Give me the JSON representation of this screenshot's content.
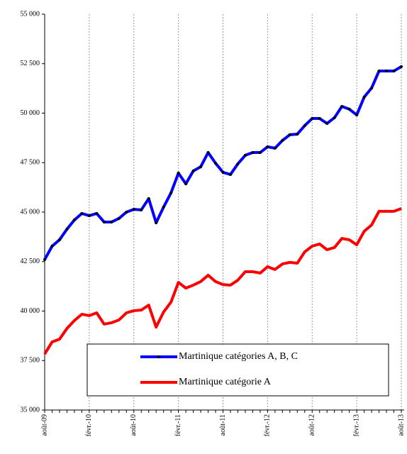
{
  "chart_data": {
    "type": "line",
    "categories": [
      "août-09",
      null,
      null,
      null,
      null,
      null,
      "févr.-10",
      null,
      null,
      null,
      null,
      null,
      "août-10",
      null,
      null,
      null,
      null,
      null,
      "févr.-11",
      null,
      null,
      null,
      null,
      null,
      "août-11",
      null,
      null,
      null,
      null,
      null,
      "févr.-12",
      null,
      null,
      null,
      null,
      null,
      "août-12",
      null,
      null,
      null,
      null,
      null,
      "févr.-13",
      null,
      null,
      null,
      null,
      null,
      "août-13"
    ],
    "series": [
      {
        "name": "Martinique catégories A, B, C",
        "color": "#0000ff",
        "markers": true,
        "values": [
          42600,
          43280,
          43600,
          44140,
          44600,
          44930,
          44820,
          44930,
          44500,
          44500,
          44680,
          45000,
          45140,
          45110,
          45680,
          44460,
          45250,
          45970,
          46970,
          46430,
          47080,
          47290,
          48010,
          47470,
          47010,
          46900,
          47440,
          47870,
          48010,
          48010,
          48300,
          48230,
          48620,
          48910,
          48940,
          49370,
          49730,
          49730,
          49480,
          49770,
          50340,
          50200,
          49910,
          50810,
          51270,
          52130,
          52130,
          52130,
          52350
        ]
      },
      {
        "name": "Martinique catégorie A",
        "color": "#ff0000",
        "markers": false,
        "values": [
          37830,
          38440,
          38580,
          39120,
          39520,
          39840,
          39770,
          39910,
          39340,
          39410,
          39550,
          39910,
          40020,
          40050,
          40300,
          39190,
          39950,
          40450,
          41450,
          41160,
          41310,
          41490,
          41810,
          41490,
          41340,
          41310,
          41560,
          41990,
          41990,
          41920,
          42240,
          42100,
          42380,
          42460,
          42420,
          42990,
          43280,
          43390,
          43100,
          43210,
          43670,
          43600,
          43350,
          44030,
          44350,
          45040,
          45040,
          45040,
          45180
        ]
      }
    ],
    "ylim": [
      35000,
      55000
    ],
    "yticks": [
      {
        "value": 35000,
        "label": "35 000"
      },
      {
        "value": 37500,
        "label": "37 500"
      },
      {
        "value": 40000,
        "label": "40 000"
      },
      {
        "value": 42500,
        "label": "42 500"
      },
      {
        "value": 45000,
        "label": "45 000"
      },
      {
        "value": 47500,
        "label": "47 500"
      },
      {
        "value": 50000,
        "label": "50 000"
      },
      {
        "value": 52500,
        "label": "52 500"
      },
      {
        "value": 55000,
        "label": "55 000"
      }
    ],
    "xgrid": true
  }
}
